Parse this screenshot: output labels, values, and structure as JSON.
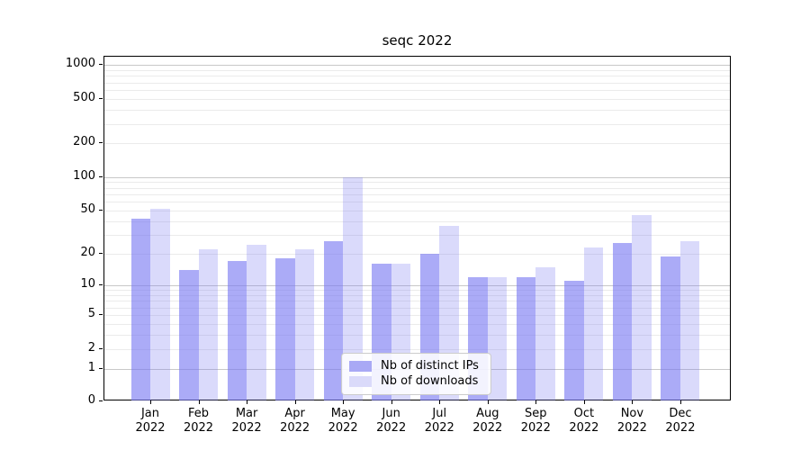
{
  "title": "seqc 2022",
  "chart_data": {
    "type": "bar",
    "title": "seqc 2022",
    "categories": [
      "Jan 2022",
      "Feb 2022",
      "Mar 2022",
      "Apr 2022",
      "May 2022",
      "Jun 2022",
      "Jul 2022",
      "Aug 2022",
      "Sep 2022",
      "Oct 2022",
      "Nov 2022",
      "Dec 2022"
    ],
    "series": [
      {
        "name": "Nb of distinct IPs",
        "color": "#a9a9f5",
        "fill": "rgba(120,120,242,0.62)",
        "values": [
          42,
          14,
          17,
          18,
          26,
          16,
          20,
          12,
          12,
          11,
          25,
          19
        ]
      },
      {
        "name": "Nb of downloads",
        "color": "#dadafa",
        "fill": "rgba(120,120,242,0.27)",
        "values": [
          52,
          22,
          24,
          22,
          100,
          16,
          36,
          12,
          15,
          23,
          45,
          26
        ]
      }
    ],
    "yscale": "log1p",
    "ylim": [
      0,
      1200
    ],
    "yticks": [
      0,
      1,
      2,
      5,
      10,
      20,
      50,
      100,
      200,
      500,
      1000
    ],
    "major_gridlines": [
      1,
      10,
      100,
      1000
    ],
    "minor_gridlines": [
      2,
      3,
      4,
      5,
      6,
      7,
      8,
      9,
      20,
      30,
      40,
      50,
      60,
      70,
      80,
      90,
      200,
      300,
      400,
      500,
      600,
      700,
      800,
      900
    ],
    "grid": true,
    "legend_position": "lower center"
  },
  "colors": {
    "grid_major": "#c8c8c8",
    "grid_minor": "#ebebeb",
    "axis": "#000000",
    "text": "#000000",
    "legend_border": "#cccccc",
    "background": "#ffffff"
  }
}
